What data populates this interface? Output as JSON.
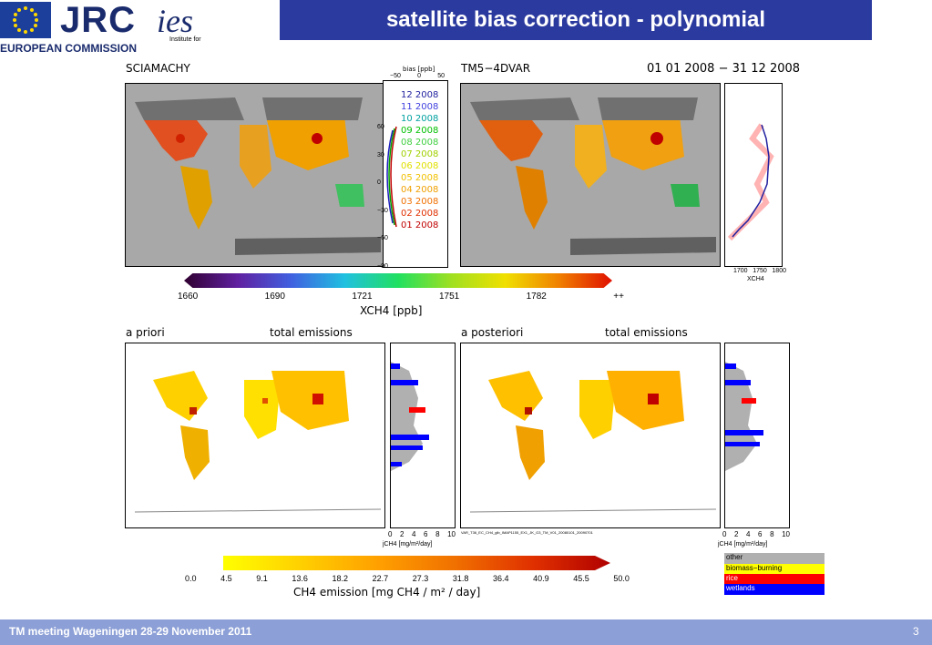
{
  "header": {
    "title": "satellite bias correction - polynomial",
    "jrc": "JRC",
    "ec": "EUROPEAN COMMISSION",
    "ies": "ies",
    "ies_sub": "Institute for"
  },
  "top": {
    "left_label": "SCIAMACHY",
    "right_label": "TM5−4DVAR",
    "date": "01 01 2008 − 31 12 2008",
    "bias_label": "bias [ppb]",
    "bias_ticks": [
      "−50",
      "0",
      "50"
    ],
    "lat_ticks": [
      "60",
      "30",
      "0",
      "−30",
      "−60",
      "−90"
    ],
    "months": [
      "12 2008",
      "11 2008",
      "10 2008",
      "09 2008",
      "08 2008",
      "07 2008",
      "06 2008",
      "05 2008",
      "04 2008",
      "03 2008",
      "02 2008",
      "01 2008"
    ],
    "month_colors": [
      "#2020a0",
      "#4040e0",
      "#00a0a0",
      "#00c000",
      "#40d040",
      "#a0d000",
      "#e0e000",
      "#f0c000",
      "#f0a000",
      "#f07000",
      "#e03000",
      "#c00000"
    ],
    "profile_ticks": [
      "1700",
      "1750",
      "1800"
    ],
    "profile_label": "XCH4",
    "colorbar_ticks": [
      "1660",
      "1690",
      "1721",
      "1751",
      "1782",
      "++"
    ],
    "colorbar_label": "XCH4 [ppb]"
  },
  "bottom": {
    "left_label1": "a priori",
    "left_label2": "total emissions",
    "right_label1": "a posteriori",
    "right_label2": "total emissions",
    "hist_ticks": [
      "0",
      "2",
      "4",
      "6",
      "8",
      "10"
    ],
    "hist_label": "jCH4 [mg/m²/day]",
    "filename": "VAR_T36_EC_CH4_glb_IMAP1155_EX1_JK_G3_TM_V01_20080101_20090701",
    "legend": [
      {
        "label": "other",
        "color": "#b0b0b0"
      },
      {
        "label": "biomass−burning",
        "color": "#ffff00"
      },
      {
        "label": "rice",
        "color": "#ff0000"
      },
      {
        "label": "wetlands",
        "color": "#0000ff"
      }
    ],
    "colorbar_ticks": [
      "0.0",
      "4.5",
      "9.1",
      "13.6",
      "18.2",
      "22.7",
      "27.3",
      "31.8",
      "36.4",
      "40.9",
      "45.5",
      "50.0"
    ],
    "colorbar_label": "CH4 emission [mg CH4 / m² / day]"
  },
  "footer": {
    "text": "TM meeting Wageningen 28-29 November 2011",
    "page": "3"
  }
}
